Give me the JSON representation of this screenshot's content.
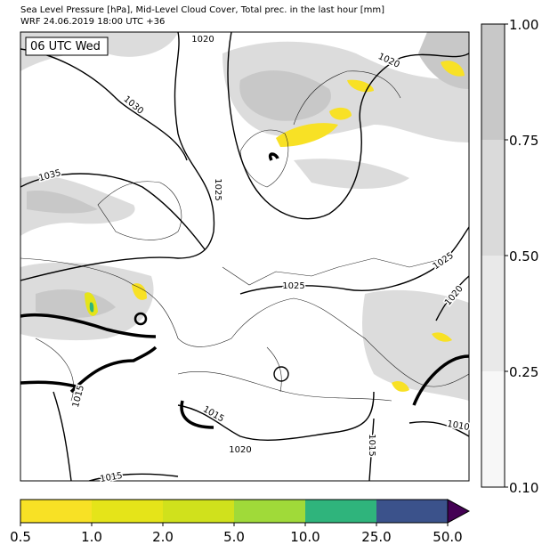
{
  "header": {
    "title_line_1": "Sea Level Pressure [hPa], Mid-Level Cloud Cover, Total prec. in the last hour [mm]",
    "title_line_2": "WRF 24.06.2019 18:00 UTC +36"
  },
  "map": {
    "time_label": "06 UTC Wed",
    "isobar_labels": [
      "1020",
      "1020",
      "1030",
      "1035",
      "1025",
      "1025",
      "1025",
      "1020",
      "1015",
      "1015",
      "1020",
      "1015",
      "1010",
      "1015"
    ]
  },
  "precip_colorbar": {
    "ticks": [
      {
        "value": 0.5,
        "label": "0.5"
      },
      {
        "value": 1,
        "label": "1.0"
      },
      {
        "value": 2,
        "label": "2.0"
      },
      {
        "value": 5,
        "label": "5.0"
      },
      {
        "value": 10,
        "label": "10.0"
      },
      {
        "value": 25,
        "label": "25.0"
      },
      {
        "value": 50,
        "label": "50.0"
      }
    ],
    "colors": [
      "#f8e125",
      "#e5e419",
      "#d0e11c",
      "#a0da39",
      "#2fb47c",
      "#3b528b"
    ],
    "extend_color": "#440154"
  },
  "cloud_colorbar": {
    "ticks": [
      {
        "value": 0.1,
        "label": "0.10"
      },
      {
        "value": 0.25,
        "label": "0.25"
      },
      {
        "value": 0.5,
        "label": "0.50"
      },
      {
        "value": 0.75,
        "label": "0.75"
      },
      {
        "value": 1,
        "label": "1.00"
      }
    ],
    "colors": [
      "#f7f7f7",
      "#e9e9e9",
      "#dadada",
      "#c8c8c8"
    ]
  }
}
